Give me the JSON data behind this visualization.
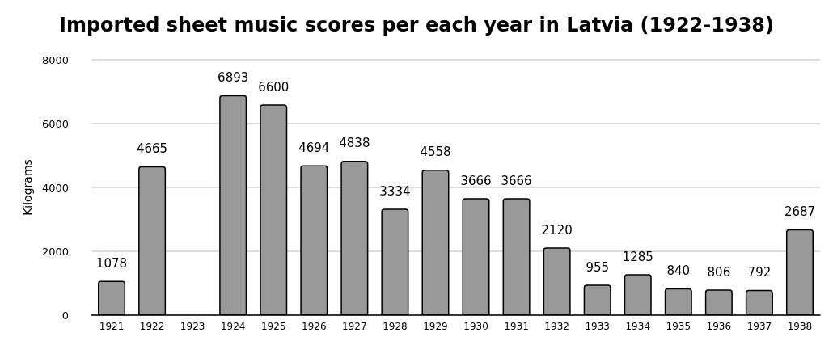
{
  "chart_data": {
    "type": "bar",
    "title": "Imported sheet music scores per each year in Latvia (1922-1938)",
    "ylabel": "Kilograms",
    "categories": [
      "1921",
      "1922",
      "1923",
      "1924",
      "1925",
      "1926",
      "1927",
      "1928",
      "1929",
      "1930",
      "1931",
      "1932",
      "1933",
      "1934",
      "1935",
      "1936",
      "1937",
      "1938"
    ],
    "values": [
      1078,
      4665,
      null,
      6893,
      6600,
      4694,
      4838,
      3334,
      4558,
      3666,
      3666,
      2120,
      955,
      1285,
      840,
      806,
      792,
      2687
    ],
    "color": "#999999",
    "ylim": [
      0,
      8000
    ],
    "yticks": [
      0,
      2000,
      4000,
      6000,
      8000
    ],
    "grid": "y",
    "data_labels": true
  }
}
